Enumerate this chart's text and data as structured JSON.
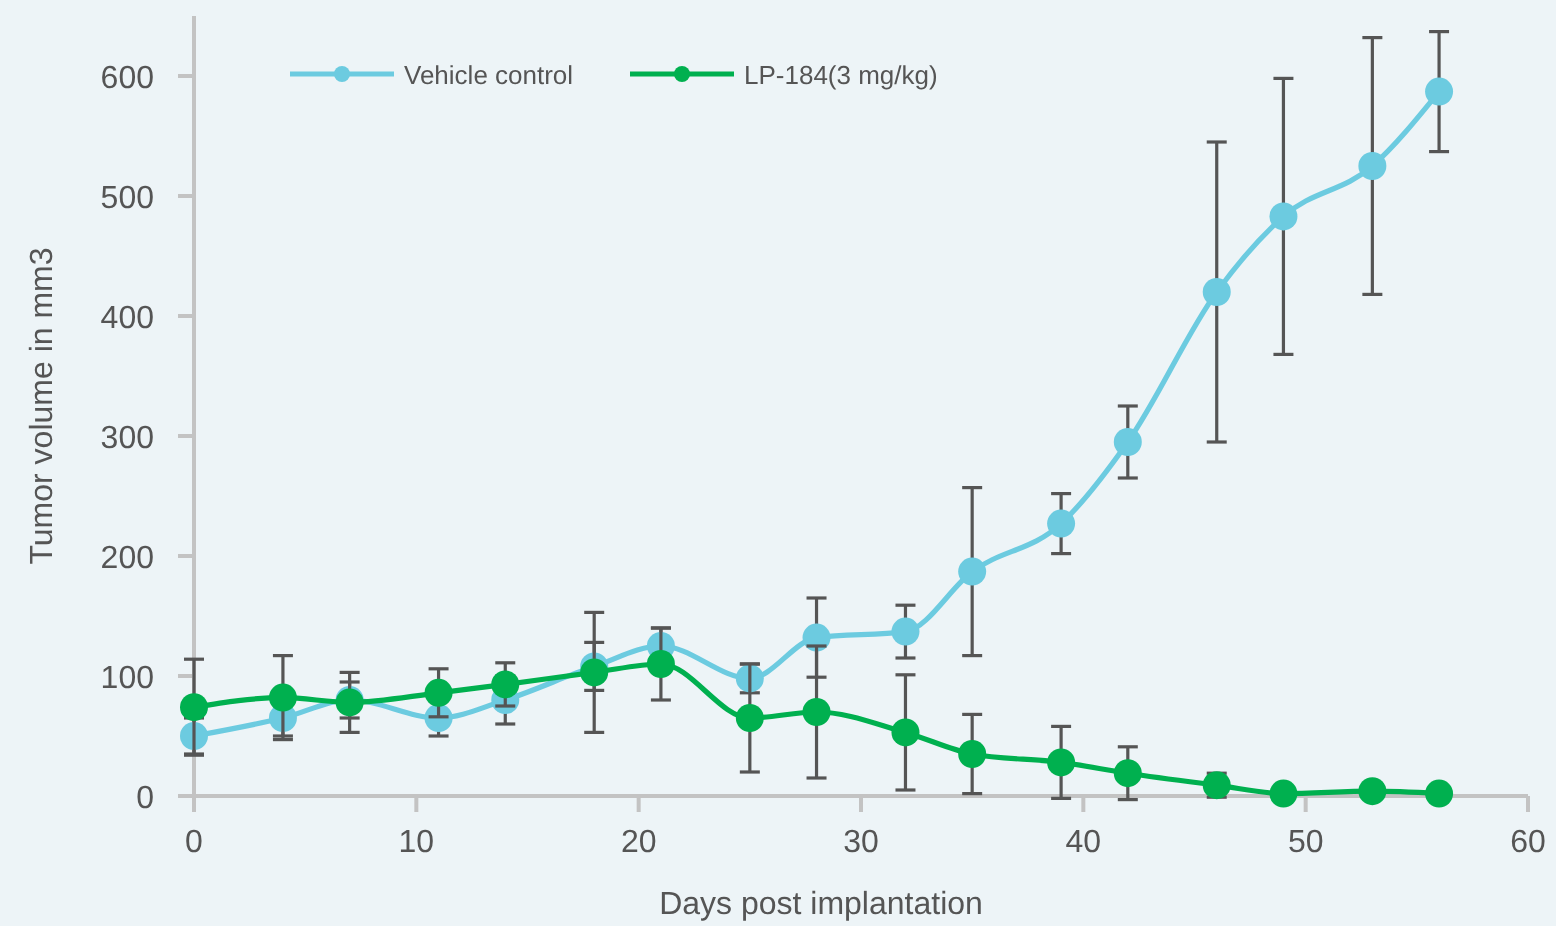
{
  "chart_data": {
    "type": "line",
    "xlabel": "Days post implantation",
    "ylabel": "Tumor volume in mm3",
    "x": [
      0,
      4,
      7,
      11,
      14,
      18,
      21,
      25,
      28,
      32,
      35,
      39,
      42,
      46,
      49,
      53,
      56
    ],
    "series": [
      {
        "name": "Vehicle control",
        "color": "#6ccbe0",
        "values": [
          50,
          65,
          80,
          65,
          80,
          108,
          125,
          98,
          132,
          137,
          187,
          227,
          295,
          420,
          483,
          525,
          587
        ],
        "errors": [
          15,
          15,
          15,
          15,
          20,
          20,
          15,
          12,
          33,
          22,
          70,
          25,
          30,
          125,
          115,
          107,
          50
        ]
      },
      {
        "name": "LP-184(3 mg/kg)",
        "color": "#00b04f",
        "values": [
          74,
          82,
          78,
          86,
          93,
          103,
          110,
          65,
          70,
          53,
          35,
          28,
          19,
          9,
          2,
          4,
          2
        ],
        "errors": [
          40,
          35,
          25,
          20,
          18,
          50,
          30,
          45,
          55,
          48,
          33,
          30,
          22,
          10,
          null,
          null,
          null
        ]
      }
    ],
    "xlim": [
      0,
      60
    ],
    "xticks": [
      0,
      10,
      20,
      30,
      40,
      50,
      60
    ],
    "ylim": [
      0,
      650
    ],
    "yticks": [
      0,
      100,
      200,
      300,
      400,
      500,
      600
    ],
    "grid": false,
    "legend": "top left",
    "marker": "circle",
    "line_style": "solid"
  }
}
